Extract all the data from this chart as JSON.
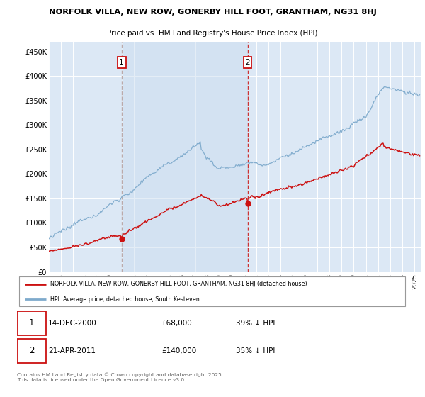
{
  "title1": "NORFOLK VILLA, NEW ROW, GONERBY HILL FOOT, GRANTHAM, NG31 8HJ",
  "title2": "Price paid vs. HM Land Registry's House Price Index (HPI)",
  "background_color": "white",
  "plot_bg": "#dce8f5",
  "plot_bg_highlight": "#ccddf0",
  "legend_label_red": "NORFOLK VILLA, NEW ROW, GONERBY HILL FOOT, GRANTHAM, NG31 8HJ (detached house)",
  "legend_label_blue": "HPI: Average price, detached house, South Kesteven",
  "footer": "Contains HM Land Registry data © Crown copyright and database right 2025.\nThis data is licensed under the Open Government Licence v3.0.",
  "sale1_date_str": "14-DEC-2000",
  "sale1_price_str": "£68,000",
  "sale1_pct_str": "39% ↓ HPI",
  "sale1_x": 2000.96,
  "sale1_y": 68000,
  "sale2_date_str": "21-APR-2011",
  "sale2_price_str": "£140,000",
  "sale2_pct_str": "35% ↓ HPI",
  "sale2_x": 2011.3,
  "sale2_y": 140000,
  "yticks": [
    0,
    50000,
    100000,
    150000,
    200000,
    250000,
    300000,
    350000,
    400000,
    450000
  ],
  "ytick_labels": [
    "£0",
    "£50K",
    "£100K",
    "£150K",
    "£200K",
    "£250K",
    "£300K",
    "£350K",
    "£400K",
    "£450K"
  ],
  "ymax": 470000,
  "xmin": 1995,
  "xmax": 2025.5,
  "line_color_red": "#cc1111",
  "line_color_blue": "#7eaacc",
  "vline_color1": "#bbaaaa",
  "vline_color2": "#cc3333",
  "grid_color": "white",
  "marker_color": "#cc1111",
  "box_edge_color": "#cc1111"
}
